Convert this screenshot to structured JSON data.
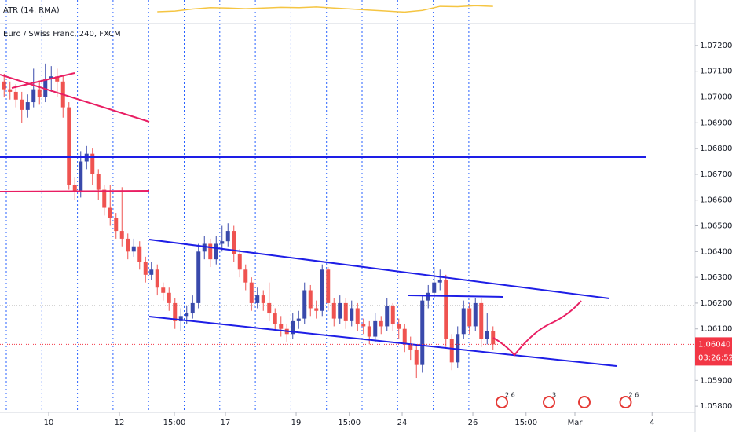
{
  "chart_data": {
    "type": "candlestick",
    "title": "Euro / Swiss Franc, 240, FXCM",
    "up_color": "#3949ab",
    "down_color": "#ef5350",
    "x": [
      0,
      1,
      2,
      3,
      4,
      5,
      6,
      7,
      8,
      9,
      10,
      11,
      12,
      13,
      14,
      15,
      16,
      17,
      18,
      19,
      20,
      21,
      22,
      23,
      24,
      25,
      26,
      27,
      28,
      29,
      30,
      31,
      32,
      33,
      34,
      35,
      36,
      37,
      38,
      39,
      40,
      41,
      42,
      43,
      44,
      45,
      46,
      47,
      48,
      49,
      50,
      51,
      52,
      53,
      54,
      55,
      56,
      57,
      58,
      59,
      60,
      61,
      62,
      63,
      64,
      65,
      66,
      67,
      68,
      69,
      70,
      71,
      72,
      73,
      74,
      75,
      76,
      77,
      78,
      79,
      80,
      81,
      82,
      83
    ],
    "open": [
      1.0706,
      1.0703,
      1.0702,
      1.0699,
      1.0695,
      1.0698,
      1.0703,
      1.07,
      1.0707,
      1.0708,
      1.0706,
      1.0696,
      1.0666,
      1.0663,
      1.0675,
      1.0678,
      1.067,
      1.0664,
      1.0657,
      1.0653,
      1.0648,
      1.0645,
      1.064,
      1.0642,
      1.0636,
      1.0631,
      1.0633,
      1.0626,
      1.0624,
      1.062,
      1.0613,
      1.0615,
      1.0616,
      1.062,
      1.064,
      1.0643,
      1.0637,
      1.0643,
      1.0644,
      1.0648,
      1.0639,
      1.0633,
      1.0628,
      1.062,
      1.0623,
      1.062,
      1.0616,
      1.0612,
      1.061,
      1.0608,
      1.0613,
      1.0614,
      1.0625,
      1.0618,
      1.0617,
      1.0633,
      1.062,
      1.0614,
      1.062,
      1.0613,
      1.0618,
      1.0612,
      1.0611,
      1.0607,
      1.0613,
      1.0611,
      1.0619,
      1.0612,
      1.061,
      1.0604,
      1.0602,
      1.0596,
      1.0621,
      1.0624,
      1.0628,
      1.0629,
      1.0606,
      1.0597,
      1.0608,
      1.0618,
      1.0611,
      1.062,
      1.0606,
      1.0609
    ],
    "high": [
      1.0709,
      1.0706,
      1.0705,
      1.0702,
      1.0701,
      1.0711,
      1.0706,
      1.0713,
      1.0712,
      1.0711,
      1.0708,
      1.0698,
      1.0669,
      1.0679,
      1.0681,
      1.068,
      1.0672,
      1.0666,
      1.0666,
      1.0655,
      1.0665,
      1.0647,
      1.0645,
      1.0644,
      1.0638,
      1.0636,
      1.0635,
      1.0628,
      1.0626,
      1.0622,
      1.0618,
      1.0619,
      1.0623,
      1.0643,
      1.0646,
      1.0645,
      1.0646,
      1.065,
      1.0651,
      1.065,
      1.0641,
      1.0635,
      1.063,
      1.0626,
      1.0625,
      1.0628,
      1.0618,
      1.0615,
      1.0612,
      1.0616,
      1.0617,
      1.0628,
      1.0627,
      1.0621,
      1.0635,
      1.0634,
      1.0622,
      1.0623,
      1.0622,
      1.0621,
      1.062,
      1.0614,
      1.0613,
      1.0616,
      1.0615,
      1.0622,
      1.062,
      1.0614,
      1.0612,
      1.0607,
      1.0604,
      1.0623,
      1.0627,
      1.0634,
      1.0633,
      1.0631,
      1.0608,
      1.0611,
      1.0621,
      1.062,
      1.0622,
      1.0622,
      1.0616,
      1.0611
    ],
    "low": [
      1.07,
      1.0699,
      1.0696,
      1.069,
      1.0692,
      1.0696,
      1.0697,
      1.0698,
      1.0702,
      1.07,
      1.0692,
      1.0664,
      1.066,
      1.0661,
      1.0672,
      1.0666,
      1.066,
      1.0654,
      1.065,
      1.0645,
      1.0642,
      1.0637,
      1.0638,
      1.0633,
      1.0628,
      1.0629,
      1.0623,
      1.0621,
      1.0617,
      1.061,
      1.0609,
      1.0612,
      1.0614,
      1.0618,
      1.0637,
      1.0634,
      1.0635,
      1.064,
      1.0642,
      1.0636,
      1.063,
      1.0625,
      1.0617,
      1.0618,
      1.0617,
      1.0613,
      1.0609,
      1.0607,
      1.0605,
      1.0606,
      1.061,
      1.0612,
      1.0615,
      1.0614,
      1.0615,
      1.0617,
      1.0611,
      1.0612,
      1.061,
      1.0611,
      1.0609,
      1.0608,
      1.0604,
      1.0605,
      1.0608,
      1.0609,
      1.0609,
      1.0606,
      1.0601,
      1.0598,
      1.0591,
      1.0593,
      1.0618,
      1.0622,
      1.0625,
      1.0603,
      1.0594,
      1.0595,
      1.0606,
      1.0608,
      1.0609,
      1.0603,
      1.0604,
      1.0602
    ],
    "close": [
      1.0703,
      1.0702,
      1.0699,
      1.0695,
      1.0698,
      1.0703,
      1.07,
      1.0707,
      1.0708,
      1.0706,
      1.0696,
      1.0666,
      1.0663,
      1.0675,
      1.0678,
      1.067,
      1.0664,
      1.0657,
      1.0653,
      1.0648,
      1.0645,
      1.064,
      1.0642,
      1.0636,
      1.0631,
      1.0633,
      1.0626,
      1.0624,
      1.062,
      1.0613,
      1.0615,
      1.0616,
      1.062,
      1.064,
      1.0643,
      1.0637,
      1.0643,
      1.0644,
      1.0648,
      1.0639,
      1.0633,
      1.0628,
      1.062,
      1.0623,
      1.062,
      1.0616,
      1.0612,
      1.061,
      1.0608,
      1.0613,
      1.0614,
      1.0625,
      1.0618,
      1.0617,
      1.0633,
      1.062,
      1.0614,
      1.062,
      1.0613,
      1.0618,
      1.0612,
      1.0611,
      1.0607,
      1.0613,
      1.0611,
      1.0619,
      1.0612,
      1.061,
      1.0604,
      1.0602,
      1.0596,
      1.0621,
      1.0624,
      1.0628,
      1.0629,
      1.0606,
      1.0597,
      1.0608,
      1.0618,
      1.0611,
      1.062,
      1.0606,
      1.0609,
      1.0604
    ],
    "xlim": [
      -0.7,
      117.3
    ],
    "ylim": [
      1.05776,
      1.07285
    ],
    "xticks": [
      {
        "value": 7.57,
        "label": "10"
      },
      {
        "value": 19.57,
        "label": "12"
      },
      {
        "value": 28.9,
        "label": "15:00"
      },
      {
        "value": 37.57,
        "label": "17"
      },
      {
        "value": 49.57,
        "label": "19"
      },
      {
        "value": 58.6,
        "label": "15:00"
      },
      {
        "value": 67.57,
        "label": "24"
      },
      {
        "value": 79.57,
        "label": "26"
      },
      {
        "value": 88.6,
        "label": "15:00"
      },
      {
        "value": 96.9,
        "label": "Mar"
      },
      {
        "value": 110,
        "label": "4"
      }
    ],
    "yticks": [
      {
        "value": 1.072,
        "label": "1.07200"
      },
      {
        "value": 1.071,
        "label": "1.07100"
      },
      {
        "value": 1.07,
        "label": "1.07000"
      },
      {
        "value": 1.069,
        "label": "1.06900"
      },
      {
        "value": 1.068,
        "label": "1.06800"
      },
      {
        "value": 1.067,
        "label": "1.06700"
      },
      {
        "value": 1.066,
        "label": "1.06600"
      },
      {
        "value": 1.065,
        "label": "1.06500"
      },
      {
        "value": 1.064,
        "label": "1.06400"
      },
      {
        "value": 1.063,
        "label": "1.06300"
      },
      {
        "value": 1.062,
        "label": "1.06200"
      },
      {
        "value": 1.061,
        "label": "1.06100"
      },
      {
        "value": 1.06,
        "label": "1.06000"
      },
      {
        "value": 1.059,
        "label": "1.05900"
      },
      {
        "value": 1.058,
        "label": "1.05800"
      }
    ],
    "last_price": {
      "value": 1.0604,
      "label": "1.06040",
      "countdown": "03:26:52",
      "color": "#f23645"
    },
    "ref_line": 1.0619,
    "atr": {
      "title": "ATR (14, RMA)",
      "color": "#f5c542",
      "ylim": [
        0.0008,
        0.0014
      ],
      "x": [
        26,
        29,
        32,
        35,
        38,
        41,
        44,
        47,
        50,
        53,
        56,
        59,
        62,
        65,
        68,
        71,
        74,
        77,
        80,
        83
      ],
      "values": [
        0.0011,
        0.00112,
        0.00118,
        0.00122,
        0.00121,
        0.00119,
        0.00121,
        0.00123,
        0.00122,
        0.00124,
        0.00121,
        0.00118,
        0.00115,
        0.00112,
        0.00109,
        0.00114,
        0.00126,
        0.00125,
        0.00128,
        0.00126
      ]
    },
    "events": [
      {
        "label": "2 6",
        "x": 84.5
      },
      {
        "label": "3",
        "x": 92.5
      },
      {
        "label": "",
        "x": 98.5
      },
      {
        "label": "2 6",
        "x": 105.5
      }
    ]
  }
}
